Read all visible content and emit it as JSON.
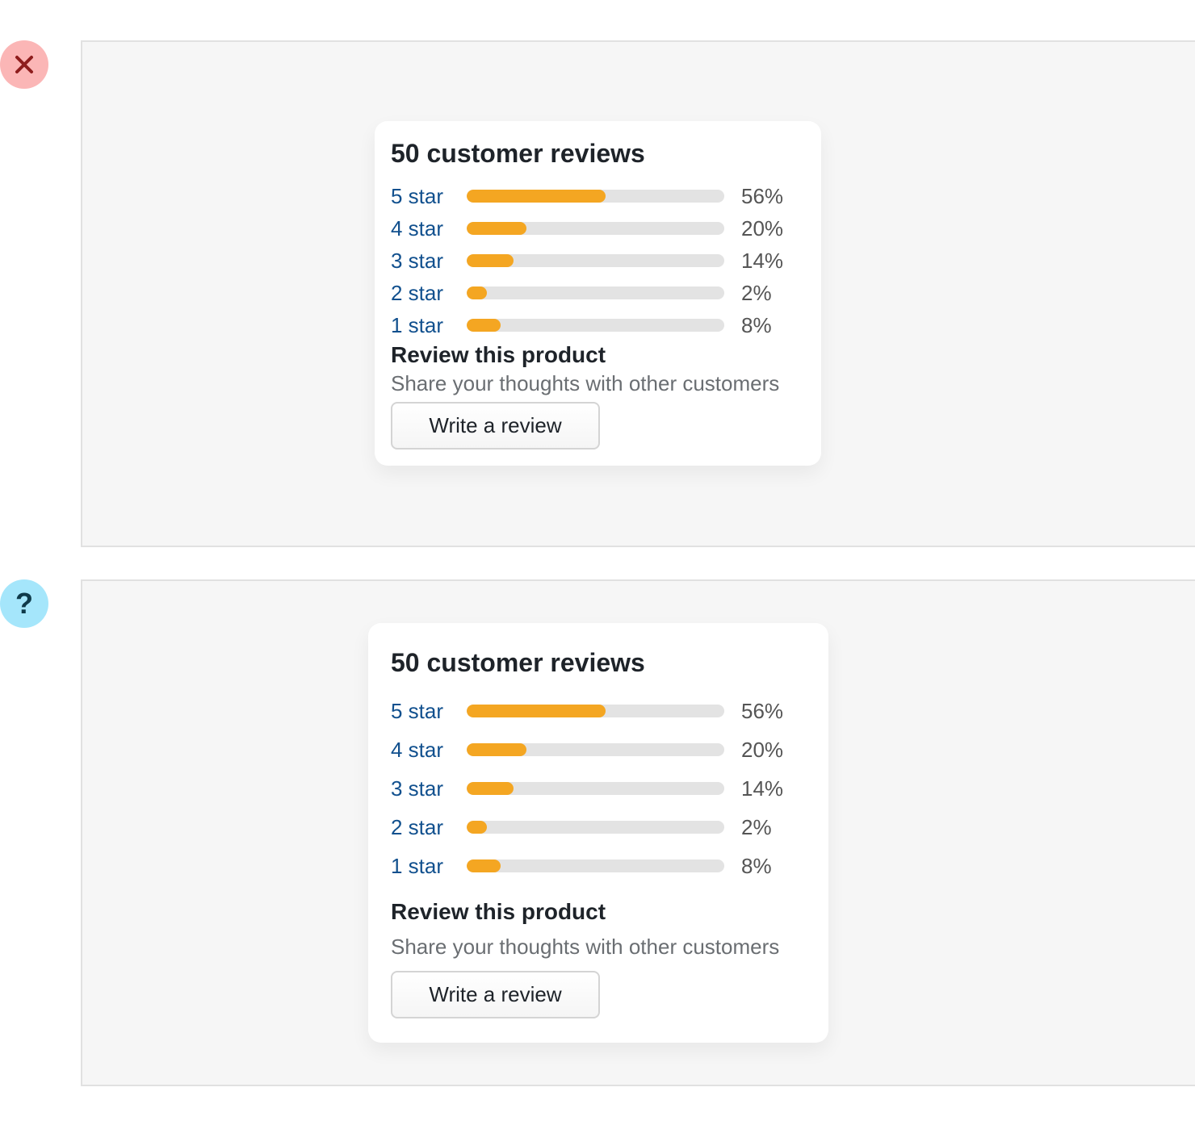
{
  "badges": {
    "incorrect_icon": "x-icon",
    "question_icon": "?"
  },
  "colors": {
    "accent": "#f4a622",
    "track": "#e3e3e3",
    "link": "#11508e",
    "incorrect_badge": "#fbb6b6",
    "question_badge": "#a5e6fb"
  },
  "examples": [
    {
      "title": "50 customer reviews",
      "ratings": [
        {
          "label": "5 star",
          "percent_label": "56%",
          "percent": 56
        },
        {
          "label": "4 star",
          "percent_label": "20%",
          "percent": 20
        },
        {
          "label": "3 star",
          "percent_label": "14%",
          "percent": 14
        },
        {
          "label": "2 star",
          "percent_label": "2%",
          "percent": 2
        },
        {
          "label": "1 star",
          "percent_label": "8%",
          "percent": 8
        }
      ],
      "review_heading": "Review this product",
      "review_subtitle": "Share your thoughts with other customers",
      "button_label": "Write a review"
    },
    {
      "title": "50 customer reviews",
      "ratings": [
        {
          "label": "5 star",
          "percent_label": "56%",
          "percent": 56
        },
        {
          "label": "4 star",
          "percent_label": "20%",
          "percent": 20
        },
        {
          "label": "3 star",
          "percent_label": "14%",
          "percent": 14
        },
        {
          "label": "2 star",
          "percent_label": "2%",
          "percent": 2
        },
        {
          "label": "1 star",
          "percent_label": "8%",
          "percent": 8
        }
      ],
      "review_heading": "Review this product",
      "review_subtitle": "Share your thoughts with other customers",
      "button_label": "Write a review"
    }
  ]
}
